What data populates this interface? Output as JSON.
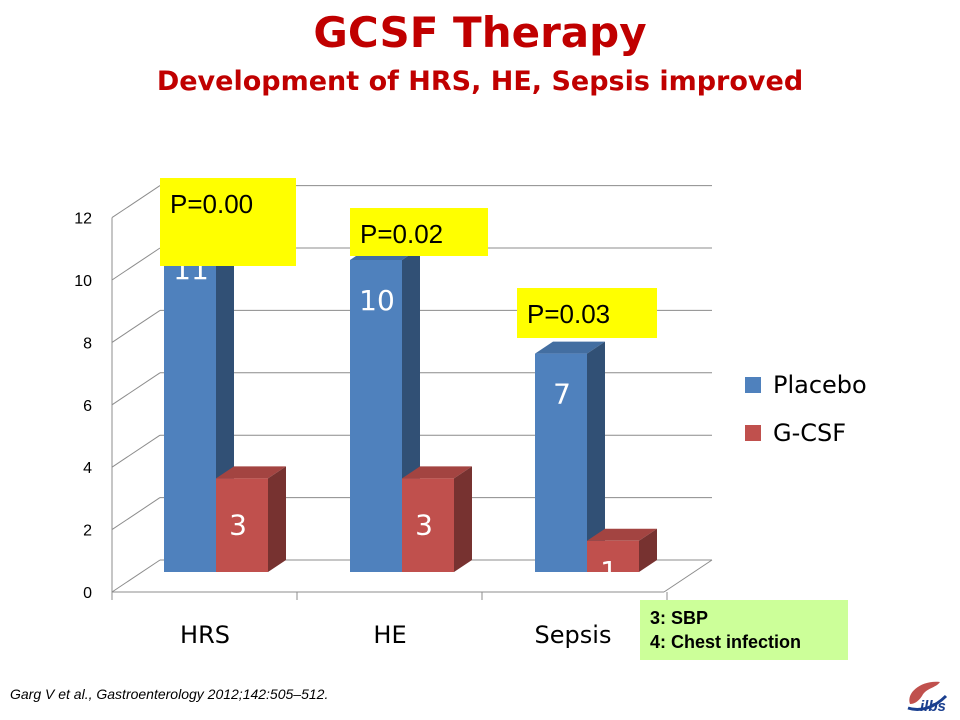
{
  "header": {
    "title": "GCSF Therapy",
    "subtitle": "Development of HRS, HE, Sepsis improved"
  },
  "chart_data": {
    "type": "bar",
    "categories": [
      "HRS",
      "HE",
      "Sepsis"
    ],
    "series": [
      {
        "name": "Placebo",
        "values": [
          11,
          10,
          7
        ],
        "color": "#4f81bd"
      },
      {
        "name": "G-CSF",
        "values": [
          3,
          3,
          1
        ],
        "color": "#c0504d"
      }
    ],
    "ylim": [
      0,
      12
    ],
    "yticks": [
      "0",
      "2",
      "4",
      "6",
      "8",
      "10",
      "12"
    ],
    "data_labels": [
      "11",
      "10",
      "7",
      "3",
      "3",
      "1"
    ],
    "annotations": [
      "P=0.00",
      "P=0.02",
      "P=0.03"
    ],
    "annotation_color": "#ffff00",
    "grid": true,
    "legend_position": "right",
    "style": "3d-clustered-column"
  },
  "legend": {
    "items": [
      "Placebo",
      "G-CSF"
    ]
  },
  "notes": {
    "line1": "3: SBP",
    "line2": "4: Chest infection",
    "background": "#ccff99"
  },
  "citation": "Garg V et al., Gastroenterology 2012;142:505–512.",
  "logo": {
    "text": "ilbs",
    "icon": "ilbs-logo-icon"
  }
}
